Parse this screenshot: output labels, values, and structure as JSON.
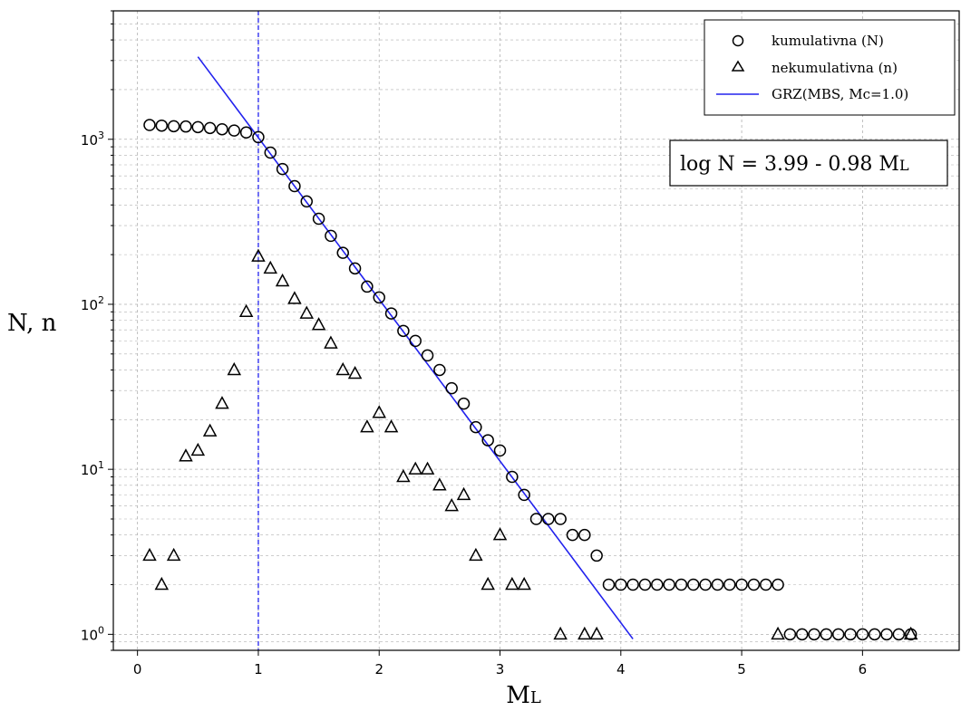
{
  "chart_data": {
    "type": "scatter",
    "title": "",
    "xlabel": "ML",
    "xlabel_main": "M",
    "xlabel_sub": "L",
    "ylabel": "N, n",
    "yscale": "log",
    "xlim": [
      -0.2,
      6.8
    ],
    "ylim": [
      0.8,
      6000
    ],
    "x_ticks": [
      0,
      1,
      2,
      3,
      4,
      5,
      6
    ],
    "y_ticks": [
      1,
      10,
      100,
      1000
    ],
    "y_tick_labels": [
      {
        "base": "10",
        "exp": "0"
      },
      {
        "base": "10",
        "exp": "1"
      },
      {
        "base": "10",
        "exp": "2"
      },
      {
        "base": "10",
        "exp": "3"
      }
    ],
    "grid": true,
    "legend_position": "top-right",
    "series": [
      {
        "name": "kumulativna (N)",
        "marker": "circle",
        "x": [
          0.1,
          0.2,
          0.3,
          0.4,
          0.5,
          0.6,
          0.7,
          0.8,
          0.9,
          1.0,
          1.1,
          1.2,
          1.3,
          1.4,
          1.5,
          1.6,
          1.7,
          1.8,
          1.9,
          2.0,
          2.1,
          2.2,
          2.3,
          2.4,
          2.5,
          2.6,
          2.7,
          2.8,
          2.9,
          3.0,
          3.1,
          3.2,
          3.3,
          3.4,
          3.5,
          3.6,
          3.7,
          3.8,
          3.9,
          4.0,
          4.1,
          4.2,
          4.3,
          4.4,
          4.5,
          4.6,
          4.7,
          4.8,
          4.9,
          5.0,
          5.1,
          5.2,
          5.3,
          5.4,
          5.5,
          5.6,
          5.7,
          5.8,
          5.9,
          6.0,
          6.1,
          6.2,
          6.3,
          6.4
        ],
        "y": [
          1220,
          1210,
          1200,
          1195,
          1185,
          1170,
          1150,
          1130,
          1100,
          1030,
          830,
          660,
          520,
          420,
          330,
          260,
          205,
          165,
          128,
          110,
          88,
          69,
          60,
          49,
          40,
          31,
          25,
          18,
          15,
          13,
          9,
          7,
          5,
          5,
          5,
          4,
          4,
          3,
          2,
          2,
          2,
          2,
          2,
          2,
          2,
          2,
          2,
          2,
          2,
          2,
          2,
          2,
          2,
          1,
          1,
          1,
          1,
          1,
          1,
          1,
          1,
          1,
          1,
          1
        ]
      },
      {
        "name": "nekumulativna (n)",
        "marker": "triangle",
        "x": [
          0.1,
          0.2,
          0.3,
          0.4,
          0.5,
          0.6,
          0.7,
          0.8,
          0.9,
          1.0,
          1.1,
          1.2,
          1.3,
          1.4,
          1.5,
          1.6,
          1.7,
          1.8,
          1.9,
          2.0,
          2.1,
          2.2,
          2.3,
          2.4,
          2.5,
          2.6,
          2.7,
          2.8,
          2.9,
          3.0,
          3.1,
          3.2,
          3.5,
          3.7,
          3.8,
          5.3,
          6.4
        ],
        "y": [
          3,
          2,
          3,
          12,
          13,
          17,
          25,
          40,
          90,
          195,
          165,
          138,
          108,
          88,
          75,
          58,
          40,
          38,
          18,
          22,
          18,
          9,
          10,
          10,
          8,
          6,
          7,
          3,
          2,
          4,
          2,
          2,
          1,
          1,
          1,
          1,
          1
        ]
      },
      {
        "name": "GRZ(MBS, Mc=1.0)",
        "marker": "line",
        "color": "#2222ee",
        "a": 3.99,
        "b": 0.98,
        "x_range": [
          0.5,
          4.1
        ]
      }
    ],
    "completeness_magnitude": 1.0,
    "equation": "log N = 3.99 - 0.98 M",
    "equation_sub": "L"
  }
}
